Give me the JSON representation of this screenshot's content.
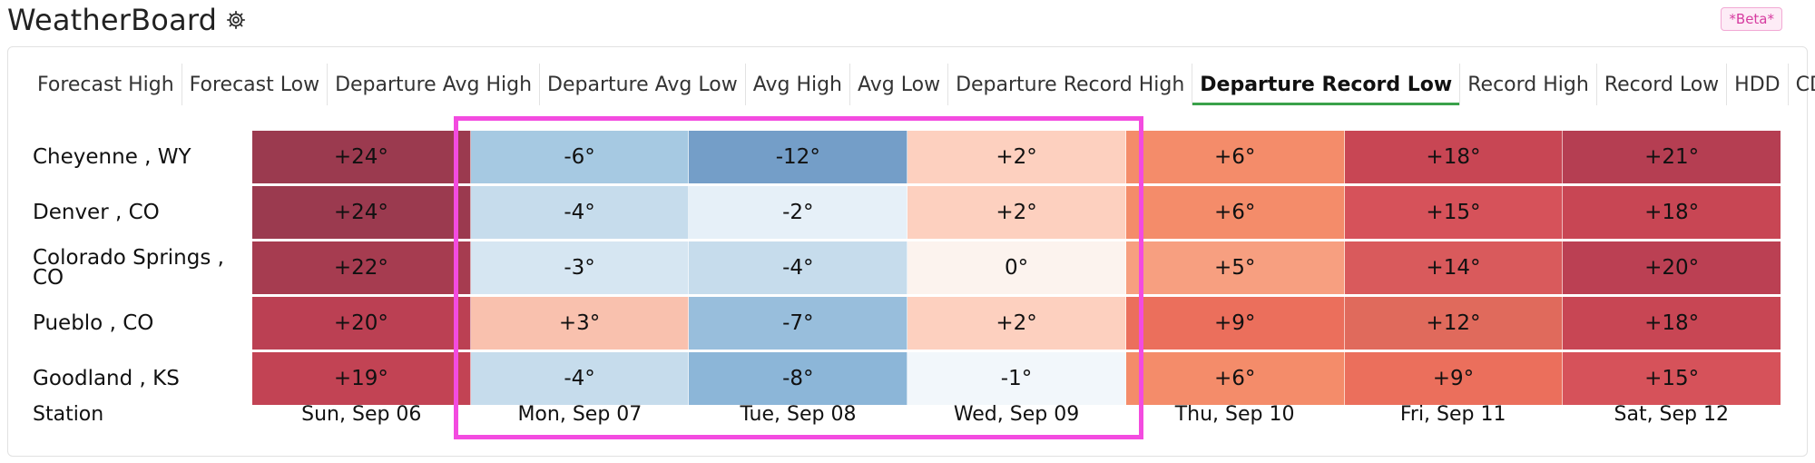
{
  "app": {
    "title": "WeatherBoard",
    "beta_badge": "*Beta*"
  },
  "tabs": [
    {
      "label": "Forecast High",
      "active": false
    },
    {
      "label": "Forecast Low",
      "active": false
    },
    {
      "label": "Departure Avg High",
      "active": false
    },
    {
      "label": "Departure Avg Low",
      "active": false
    },
    {
      "label": "Avg High",
      "active": false
    },
    {
      "label": "Avg Low",
      "active": false
    },
    {
      "label": "Departure Record High",
      "active": false
    },
    {
      "label": "Departure Record Low",
      "active": true
    },
    {
      "label": "Record High",
      "active": false
    },
    {
      "label": "Record Low",
      "active": false
    },
    {
      "label": "HDD",
      "active": false
    },
    {
      "label": "CDD",
      "active": false
    }
  ],
  "table": {
    "station_header": "Station",
    "dates": [
      "Sun, Sep 06",
      "Mon, Sep 07",
      "Tue, Sep 08",
      "Wed, Sep 09",
      "Thu, Sep 10",
      "Fri, Sep 11",
      "Sat, Sep 12"
    ],
    "rows": [
      {
        "station": "Cheyenne , WY",
        "values": [
          "+24°",
          "-6°",
          "-12°",
          "+2°",
          "+6°",
          "+18°",
          "+21°"
        ],
        "colors": [
          "#9b3a4f",
          "#a6c9e2",
          "#749ec8",
          "#fdd0bf",
          "#f48c6a",
          "#c84654",
          "#b53e52"
        ]
      },
      {
        "station": "Denver , CO",
        "values": [
          "+24°",
          "-4°",
          "-2°",
          "+2°",
          "+6°",
          "+15°",
          "+18°"
        ],
        "colors": [
          "#9b3a4f",
          "#c6dcec",
          "#e6f0f8",
          "#fdd0bf",
          "#f48c6a",
          "#d6525a",
          "#c84654"
        ]
      },
      {
        "station": "Colorado Springs , CO",
        "values": [
          "+22°",
          "-3°",
          "-4°",
          "0°",
          "+5°",
          "+14°",
          "+20°"
        ],
        "colors": [
          "#a63c50",
          "#d6e6f2",
          "#c6dcec",
          "#fcf3ee",
          "#f79f80",
          "#d95a5c",
          "#bb4053"
        ]
      },
      {
        "station": "Pueblo , CO",
        "values": [
          "+20°",
          "+3°",
          "-7°",
          "+2°",
          "+9°",
          "+12°",
          "+18°"
        ],
        "colors": [
          "#bb4053",
          "#f9c1ae",
          "#98bedc",
          "#fdd0bf",
          "#eb6f5c",
          "#e06a5c",
          "#c84654"
        ]
      },
      {
        "station": "Goodland , KS",
        "values": [
          "+19°",
          "-4°",
          "-8°",
          "-1°",
          "+6°",
          "+9°",
          "+15°"
        ],
        "colors": [
          "#c24354",
          "#c6dcec",
          "#8cb6d8",
          "#f2f7fb",
          "#f48c6a",
          "#eb6f5c",
          "#d6525a"
        ]
      }
    ]
  },
  "highlight": {
    "color": "#f34be0"
  }
}
